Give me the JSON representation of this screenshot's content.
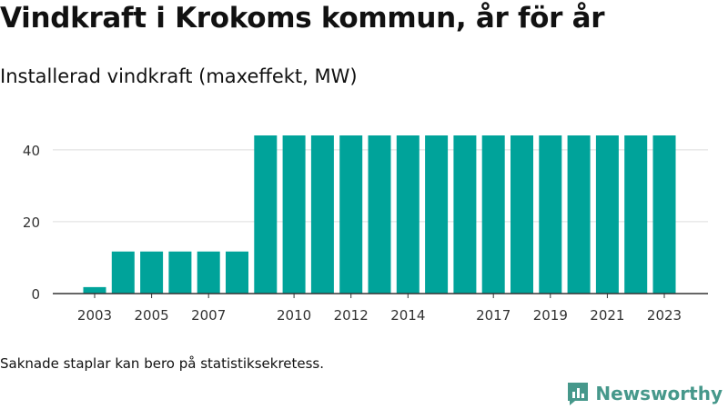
{
  "header": {
    "title": "Vindkraft i Krokoms kommun, år för år",
    "subtitle": "Installerad vindkraft (maxeffekt, MW)"
  },
  "footer": {
    "note": "Saknade staplar kan bero på statistiksekretess.",
    "brand": "Newsworthy"
  },
  "colors": {
    "bar": "#00a39a",
    "grid": "#dddddd",
    "axis": "#333333",
    "brand": "#46988b"
  },
  "chart_data": {
    "type": "bar",
    "title": "Vindkraft i Krokoms kommun, år för år",
    "subtitle": "Installerad vindkraft (maxeffekt, MW)",
    "xlabel": "",
    "ylabel": "",
    "categories": [
      2003,
      2004,
      2005,
      2006,
      2007,
      2008,
      2009,
      2010,
      2011,
      2012,
      2013,
      2014,
      2015,
      2016,
      2017,
      2018,
      2019,
      2020,
      2021,
      2022,
      2023
    ],
    "values": [
      1.8,
      11.7,
      11.7,
      11.7,
      11.7,
      11.7,
      44,
      44,
      44,
      44,
      44,
      44,
      44,
      44,
      44,
      44,
      44,
      44,
      44,
      44,
      44
    ],
    "xticks": [
      2003,
      2005,
      2007,
      2010,
      2012,
      2014,
      2017,
      2019,
      2021,
      2023
    ],
    "yticks": [
      0,
      20,
      40
    ],
    "ylim": [
      0,
      44
    ],
    "grid": true,
    "legend": "none"
  }
}
